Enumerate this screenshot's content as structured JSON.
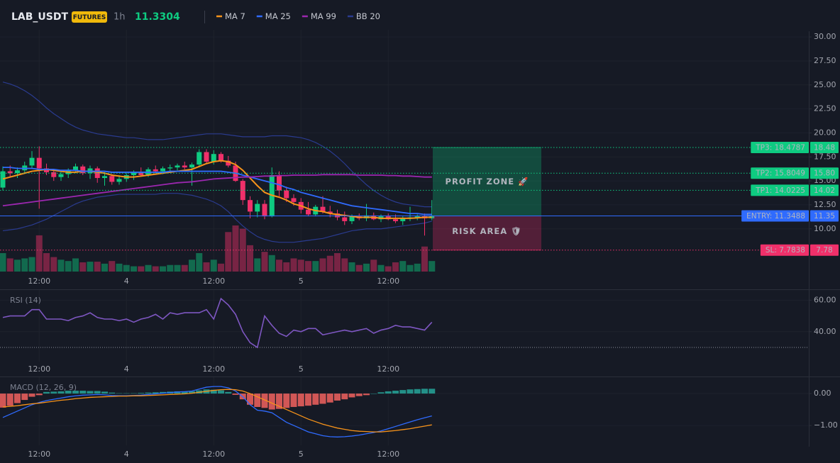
{
  "header": {
    "symbol": "LAB_USDT",
    "badge": "FUTURES",
    "interval": "1h",
    "last_price": 11.3304
  },
  "chart_data": [
    {
      "type": "candlestick",
      "categories": [
        null,
        null,
        null,
        null,
        null,
        "12:00",
        null,
        null,
        null,
        null,
        null,
        null,
        null,
        null,
        null,
        null,
        null,
        "4",
        null,
        null,
        null,
        null,
        null,
        null,
        null,
        null,
        null,
        null,
        null,
        "12:00",
        null,
        null,
        null,
        null,
        null,
        null,
        null,
        null,
        null,
        null,
        null,
        "5",
        null,
        null,
        null,
        null,
        null,
        null,
        null,
        null,
        null,
        null,
        null,
        "12:00",
        null,
        null,
        null,
        null,
        null,
        null
      ],
      "open": [
        14.3,
        16.0,
        15.8,
        16.1,
        16.6,
        17.4,
        16.3,
        15.9,
        15.4,
        15.7,
        16.1,
        16.5,
        15.8,
        16.3,
        15.3,
        15.5,
        14.9,
        15.2,
        15.6,
        15.9,
        15.6,
        16.2,
        16.0,
        16.3,
        16.4,
        16.6,
        16.4,
        16.7,
        18.0,
        17.0,
        17.8,
        17.1,
        16.6,
        15.0,
        13.0,
        11.8,
        12.6,
        11.3,
        15.6,
        14.0,
        13.2,
        12.8,
        12.0,
        11.5,
        12.3,
        11.8,
        11.6,
        11.2,
        10.8,
        11.3,
        11.1,
        11.4,
        11.0,
        11.3,
        11.0,
        10.8,
        11.1,
        11.2,
        11.3,
        11.1
      ],
      "high": [
        16.5,
        16.6,
        16.4,
        17.0,
        18.1,
        18.6,
        16.8,
        16.2,
        16.0,
        16.3,
        16.8,
        16.7,
        16.6,
        16.5,
        15.9,
        15.7,
        15.6,
        15.8,
        16.1,
        16.4,
        16.4,
        16.6,
        16.5,
        16.7,
        16.8,
        17.0,
        16.9,
        18.3,
        18.3,
        18.2,
        18.0,
        17.6,
        17.0,
        15.2,
        13.4,
        13.0,
        13.0,
        16.4,
        16.0,
        14.4,
        13.6,
        13.2,
        12.8,
        12.5,
        13.4,
        12.4,
        12.0,
        11.8,
        11.5,
        11.6,
        12.6,
        11.7,
        11.5,
        11.6,
        11.5,
        11.3,
        12.3,
        11.5,
        11.6,
        13.0
      ],
      "low": [
        14.0,
        15.4,
        15.3,
        15.8,
        16.3,
        12.1,
        15.6,
        15.0,
        15.0,
        15.3,
        15.8,
        15.6,
        15.2,
        14.8,
        14.5,
        14.6,
        14.6,
        14.9,
        15.1,
        15.5,
        15.4,
        15.8,
        15.7,
        16.0,
        16.1,
        16.2,
        14.5,
        16.4,
        16.8,
        16.7,
        16.9,
        16.4,
        14.9,
        12.5,
        11.1,
        11.2,
        11.0,
        11.2,
        13.4,
        12.8,
        12.4,
        11.6,
        11.3,
        11.3,
        11.6,
        11.2,
        10.9,
        10.4,
        10.5,
        10.9,
        10.8,
        10.9,
        10.7,
        10.9,
        10.6,
        10.4,
        10.8,
        10.9,
        9.3,
        10.9
      ],
      "close": [
        16.0,
        15.8,
        16.1,
        16.6,
        17.4,
        16.3,
        15.9,
        15.4,
        15.7,
        16.1,
        16.5,
        15.8,
        16.3,
        15.3,
        15.5,
        14.9,
        15.2,
        15.6,
        15.9,
        15.6,
        16.2,
        16.0,
        16.3,
        16.4,
        16.6,
        16.4,
        16.7,
        18.0,
        17.0,
        17.8,
        17.1,
        16.6,
        15.0,
        13.0,
        11.8,
        12.6,
        11.3,
        15.6,
        14.0,
        13.2,
        12.8,
        12.0,
        11.5,
        12.3,
        11.8,
        11.6,
        11.2,
        10.8,
        11.3,
        11.1,
        11.4,
        11.0,
        11.3,
        11.0,
        10.8,
        11.1,
        11.2,
        11.3,
        11.1,
        11.3304
      ],
      "volume": [
        28,
        20,
        18,
        20,
        22,
        55,
        28,
        22,
        18,
        16,
        20,
        14,
        15,
        15,
        12,
        16,
        12,
        10,
        8,
        8,
        10,
        8,
        8,
        10,
        10,
        10,
        18,
        28,
        14,
        18,
        12,
        60,
        70,
        65,
        40,
        20,
        30,
        25,
        18,
        14,
        20,
        18,
        16,
        16,
        20,
        24,
        28,
        20,
        14,
        10,
        12,
        18,
        10,
        8,
        14,
        16,
        10,
        12,
        38,
        16
      ],
      "up_color": "#0ecb81",
      "down_color": "#f0306a",
      "series": [
        {
          "name": "MA 7",
          "color": "#f7931a",
          "values": [
            15.2,
            15.4,
            15.6,
            15.8,
            16.0,
            16.1,
            16.2,
            16.1,
            16.0,
            15.9,
            15.9,
            16.0,
            16.0,
            15.9,
            15.8,
            15.6,
            15.5,
            15.4,
            15.4,
            15.5,
            15.6,
            15.7,
            15.8,
            15.9,
            16.0,
            16.1,
            16.2,
            16.5,
            16.8,
            17.0,
            17.1,
            17.0,
            16.7,
            16.1,
            15.3,
            14.5,
            13.8,
            13.5,
            13.3,
            13.0,
            12.6,
            12.4,
            12.1,
            11.9,
            11.8,
            11.6,
            11.5,
            11.4,
            11.3,
            11.2,
            11.2,
            11.2,
            11.1,
            11.1,
            11.1,
            11.1,
            11.1,
            11.15,
            11.2,
            11.2
          ]
        },
        {
          "name": "MA 25",
          "color": "#2f6bff",
          "values": [
            16.4,
            16.4,
            16.3,
            16.3,
            16.3,
            16.2,
            16.2,
            16.2,
            16.1,
            16.1,
            16.1,
            16.0,
            16.0,
            16.0,
            16.0,
            15.9,
            15.9,
            15.9,
            15.9,
            15.9,
            15.9,
            15.9,
            15.9,
            16.0,
            16.0,
            16.0,
            16.0,
            16.0,
            16.0,
            16.0,
            16.0,
            15.9,
            15.8,
            15.6,
            15.4,
            15.2,
            15.0,
            14.8,
            14.6,
            14.3,
            14.1,
            13.8,
            13.6,
            13.4,
            13.2,
            13.0,
            12.8,
            12.6,
            12.4,
            12.3,
            12.2,
            12.1,
            12.0,
            11.9,
            11.8,
            11.7,
            11.6,
            11.6,
            11.5,
            11.5
          ]
        },
        {
          "name": "MA 99",
          "color": "#9c27b0",
          "values": [
            12.4,
            12.5,
            12.6,
            12.7,
            12.8,
            12.9,
            13.0,
            13.1,
            13.2,
            13.3,
            13.4,
            13.5,
            13.6,
            13.7,
            13.8,
            13.9,
            14.0,
            14.1,
            14.2,
            14.3,
            14.4,
            14.5,
            14.6,
            14.7,
            14.8,
            14.85,
            14.9,
            15.0,
            15.1,
            15.2,
            15.25,
            15.3,
            15.35,
            15.4,
            15.4,
            15.45,
            15.5,
            15.5,
            15.55,
            15.55,
            15.6,
            15.6,
            15.6,
            15.6,
            15.65,
            15.65,
            15.65,
            15.65,
            15.65,
            15.6,
            15.6,
            15.6,
            15.6,
            15.55,
            15.55,
            15.5,
            15.5,
            15.45,
            15.4,
            15.4
          ]
        },
        {
          "name": "BB 20",
          "color": "#2a3b8f",
          "upper": [
            25.3,
            25.1,
            24.8,
            24.4,
            23.9,
            23.3,
            22.6,
            22.0,
            21.5,
            21.0,
            20.6,
            20.3,
            20.1,
            19.9,
            19.8,
            19.7,
            19.6,
            19.5,
            19.5,
            19.4,
            19.3,
            19.3,
            19.3,
            19.4,
            19.5,
            19.6,
            19.7,
            19.8,
            19.9,
            19.9,
            19.9,
            19.8,
            19.7,
            19.6,
            19.6,
            19.6,
            19.6,
            19.7,
            19.7,
            19.7,
            19.6,
            19.5,
            19.3,
            19.0,
            18.6,
            18.1,
            17.5,
            16.8,
            16.0,
            15.3,
            14.6,
            14.0,
            13.5,
            13.1,
            12.8,
            12.6,
            12.5,
            12.4,
            12.3,
            12.3
          ],
          "lower": [
            9.8,
            9.9,
            10.0,
            10.2,
            10.4,
            10.7,
            11.0,
            11.4,
            11.8,
            12.2,
            12.6,
            12.9,
            13.1,
            13.3,
            13.4,
            13.5,
            13.6,
            13.6,
            13.6,
            13.6,
            13.6,
            13.6,
            13.7,
            13.7,
            13.7,
            13.6,
            13.5,
            13.3,
            13.1,
            12.8,
            12.4,
            11.8,
            11.0,
            10.3,
            9.7,
            9.2,
            8.9,
            8.7,
            8.6,
            8.6,
            8.6,
            8.7,
            8.8,
            8.9,
            9.0,
            9.2,
            9.4,
            9.6,
            9.8,
            9.9,
            10.0,
            10.0,
            10.0,
            10.1,
            10.2,
            10.3,
            10.4,
            10.5,
            10.6,
            10.8
          ]
        }
      ],
      "ylim": [
        5.4,
        30.6
      ],
      "yticks": [
        {
          "value": 30,
          "label": "30.00"
        },
        {
          "value": 27.5,
          "label": "27.50"
        },
        {
          "value": 25,
          "label": "25.00"
        },
        {
          "value": 22.5,
          "label": "22.50"
        },
        {
          "value": 20,
          "label": "20.00"
        },
        {
          "value": 17.5,
          "label": "17.50"
        },
        {
          "value": 15,
          "label": "15.00"
        },
        {
          "value": 12.5,
          "label": "12.50"
        },
        {
          "value": 10,
          "label": "10.00"
        }
      ],
      "levels": [
        {
          "tag": "TP3: 18.4787",
          "value": 18.4787,
          "price_label": "18.48",
          "color": "#0ecb81",
          "text_color": "#0b0e14",
          "style": "dotted"
        },
        {
          "tag": "TP2: 15.8049",
          "value": 15.8049,
          "price_label": "15.80",
          "color": "#0ecb81",
          "text_color": "#0b0e14",
          "style": "dotted"
        },
        {
          "tag": "TP1: 14.0225",
          "value": 14.0225,
          "price_label": "14.02",
          "color": "#0ecb81",
          "text_color": "#0b0e14",
          "style": "dotted"
        },
        {
          "tag": "ENTRY: 11.3488",
          "value": 11.3488,
          "price_label": "11.35",
          "color": "#2f6bff",
          "text_color": "#ffffff",
          "style": "solid"
        },
        {
          "tag": "SL: 7.7838",
          "value": 7.7838,
          "price_label": "7.78",
          "color": "#f0306a",
          "text_color": "#ffffff",
          "style": "dotted"
        }
      ],
      "zones": [
        {
          "label": "PROFIT ZONE 🚀",
          "color": "#0ecb81"
        },
        {
          "label": "RISK AREA 🛡",
          "color": "#f0306a"
        }
      ]
    },
    {
      "type": "line",
      "title": "RSI (14)",
      "color": "#7e57c2",
      "values": [
        49,
        50,
        50,
        50,
        54,
        54,
        48,
        48,
        48,
        47,
        49,
        50,
        52,
        49,
        48,
        48,
        47,
        48,
        46,
        48,
        49,
        51,
        48,
        52,
        51,
        52,
        52,
        52,
        54,
        48,
        61,
        57,
        51,
        40,
        33,
        30,
        50,
        44,
        39,
        37,
        41,
        40,
        42,
        42,
        38,
        39,
        40,
        41,
        40,
        41,
        42,
        39,
        41,
        42,
        44,
        43,
        43,
        42,
        41,
        46
      ],
      "ylim": [
        21,
        66
      ],
      "yticks": [
        {
          "value": 60,
          "label": "60.00"
        },
        {
          "value": 40,
          "label": "40.00"
        }
      ],
      "hlines": [
        30
      ]
    },
    {
      "type": "macd",
      "title": "MACD (12, 26, 9)",
      "series": [
        {
          "color": "#2f6bff",
          "values": [
            -0.75,
            -0.65,
            -0.55,
            -0.45,
            -0.35,
            -0.28,
            -0.22,
            -0.18,
            -0.14,
            -0.1,
            -0.07,
            -0.05,
            -0.04,
            -0.03,
            -0.04,
            -0.06,
            -0.07,
            -0.07,
            -0.06,
            -0.05,
            -0.03,
            -0.01,
            0.01,
            0.03,
            0.05,
            0.06,
            0.08,
            0.14,
            0.2,
            0.22,
            0.22,
            0.18,
            0.08,
            -0.1,
            -0.35,
            -0.52,
            -0.55,
            -0.6,
            -0.75,
            -0.9,
            -1.0,
            -1.1,
            -1.2,
            -1.26,
            -1.32,
            -1.35,
            -1.36,
            -1.35,
            -1.33,
            -1.3,
            -1.26,
            -1.22,
            -1.17,
            -1.1,
            -1.03,
            -0.96,
            -0.89,
            -0.82,
            -0.76,
            -0.7
          ]
        },
        {
          "color": "#f7931a",
          "values": [
            -0.42,
            -0.4,
            -0.38,
            -0.35,
            -0.32,
            -0.3,
            -0.27,
            -0.24,
            -0.21,
            -0.19,
            -0.16,
            -0.14,
            -0.12,
            -0.11,
            -0.1,
            -0.09,
            -0.08,
            -0.08,
            -0.07,
            -0.07,
            -0.06,
            -0.05,
            -0.04,
            -0.03,
            -0.02,
            -0.01,
            0.01,
            0.04,
            0.07,
            0.1,
            0.12,
            0.13,
            0.12,
            0.08,
            0.0,
            -0.1,
            -0.2,
            -0.3,
            -0.4,
            -0.5,
            -0.6,
            -0.7,
            -0.8,
            -0.88,
            -0.96,
            -1.02,
            -1.08,
            -1.12,
            -1.16,
            -1.18,
            -1.19,
            -1.2,
            -1.2,
            -1.18,
            -1.16,
            -1.13,
            -1.1,
            -1.06,
            -1.02,
            -0.98
          ]
        }
      ],
      "histogram": {
        "up_color": "#26a69a",
        "down_color": "#f2635f",
        "values": [
          -0.44,
          -0.38,
          -0.3,
          -0.2,
          -0.1,
          -0.05,
          0.05,
          0.06,
          0.07,
          0.09,
          0.09,
          0.09,
          0.08,
          0.08,
          0.06,
          0.03,
          0.01,
          0.01,
          0.01,
          0.02,
          0.03,
          0.04,
          0.05,
          0.06,
          0.07,
          0.07,
          0.07,
          0.1,
          0.13,
          0.12,
          0.1,
          0.05,
          -0.04,
          -0.18,
          -0.35,
          -0.42,
          -0.45,
          -0.5,
          -0.48,
          -0.45,
          -0.42,
          -0.4,
          -0.38,
          -0.35,
          -0.32,
          -0.28,
          -0.22,
          -0.18,
          -0.12,
          -0.08,
          -0.05,
          0.0,
          0.04,
          0.07,
          0.09,
          0.11,
          0.13,
          0.14,
          0.15,
          0.15
        ]
      },
      "ylim": [
        -1.62,
        0.49
      ],
      "yticks": [
        {
          "value": 0,
          "label": "0.00"
        },
        {
          "value": -1,
          "label": "−1.00"
        }
      ]
    }
  ]
}
